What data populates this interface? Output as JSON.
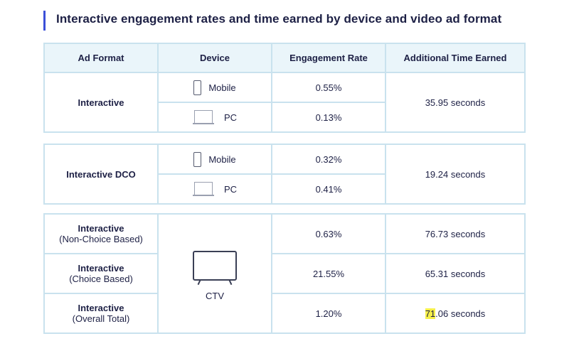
{
  "title": "Interactive engagement rates and time earned by device and video ad format",
  "headers": {
    "ad_format": "Ad Format",
    "device": "Device",
    "engagement_rate": "Engagement Rate",
    "time_earned": "Additional Time Earned"
  },
  "group1": {
    "format": "Interactive",
    "mobile_label": "Mobile",
    "mobile_rate": "0.55%",
    "pc_label": "PC",
    "pc_rate": "0.13%",
    "time": "35.95 seconds"
  },
  "group2": {
    "format": "Interactive DCO",
    "mobile_label": "Mobile",
    "mobile_rate": "0.32%",
    "pc_label": "PC",
    "pc_rate": "0.41%",
    "time": "19.24 seconds"
  },
  "group3": {
    "device_label": "CTV",
    "rows": [
      {
        "format": "Interactive",
        "sub": "(Non-Choice Based)",
        "rate": "0.63%",
        "time": "76.73 seconds"
      },
      {
        "format": "Interactive",
        "sub": "(Choice Based)",
        "rate": "21.55%",
        "time": "65.31 seconds"
      },
      {
        "format": "Interactive",
        "sub": "(Overall Total)",
        "rate": "1.20%",
        "time_highlight": "71",
        "time_rest": ".06 seconds"
      }
    ]
  },
  "colors": {
    "accent": "#3b4fd8",
    "border": "#c9e2ee",
    "header_bg": "#eaf5fa",
    "highlight": "#f6f04a"
  }
}
